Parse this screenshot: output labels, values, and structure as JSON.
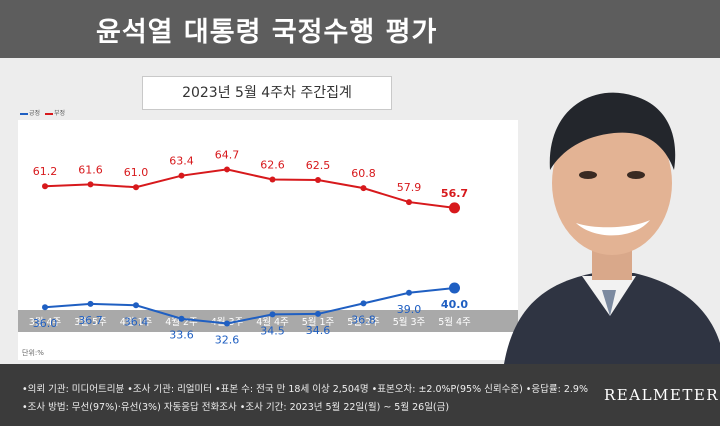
{
  "header": {
    "title": "윤석열 대통령 국정수행 평가"
  },
  "subtitle": "2023년 5월 4주차 주간집계",
  "legend": {
    "approve": "긍정",
    "disapprove": "부정"
  },
  "unit_label": "단위:%",
  "colors": {
    "approve": "#1f5fc2",
    "disapprove": "#d7191c",
    "header_bg": "#5d5d5d",
    "footer_bg": "#3b3b3b"
  },
  "chart_data": {
    "type": "line",
    "categories": [
      "3월 4주",
      "3월 5주",
      "4월 1주",
      "4월 2주",
      "4월 3주",
      "4월 4주",
      "5월 1주",
      "5월 2주",
      "5월 3주",
      "5월 4주"
    ],
    "series": [
      {
        "name": "부정",
        "color": "#d7191c",
        "values": [
          61.2,
          61.6,
          61.0,
          63.4,
          64.7,
          62.6,
          62.5,
          60.8,
          57.9,
          56.7
        ]
      },
      {
        "name": "긍정",
        "color": "#1f5fc2",
        "values": [
          36.0,
          36.7,
          36.4,
          33.6,
          32.6,
          34.5,
          34.6,
          36.8,
          39.0,
          40.0
        ]
      }
    ],
    "ylim": [
      25,
      75
    ],
    "grid": false
  },
  "footer": {
    "line1": "•의뢰 기관: 미디어트리뷴 •조사 기관: 리얼미터 •표본 수: 전국 만 18세 이상 2,504명 •표본오차: ±2.0%P(95% 신뢰수준) •응답률: 2.9%",
    "line2": "•조사 방법: 무선(97%)·유선(3%) 자동응답 전화조사 •조사 기간: 2023년 5월 22일(월) ~ 5월 26일(금)",
    "brand": "REALMETER"
  }
}
